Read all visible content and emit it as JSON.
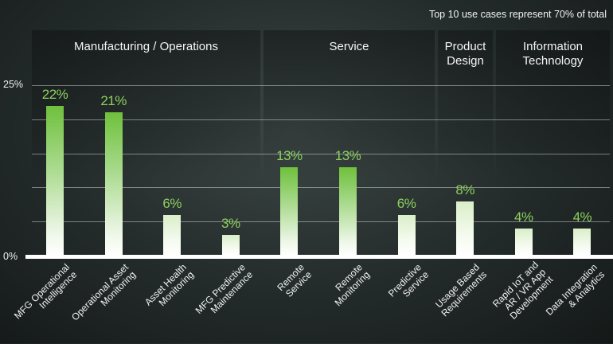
{
  "note": "Top 10 use cases represent 70% of total",
  "groups": [
    {
      "label": "Manufacturing / Operations"
    },
    {
      "label": "Service"
    },
    {
      "label": "Product Design"
    },
    {
      "label": "Information Technology"
    }
  ],
  "chart_data": {
    "type": "bar",
    "title": "Top 10 use cases represent 70% of total",
    "ylabel": "",
    "xlabel": "",
    "ylim": [
      0,
      25
    ],
    "yticks": [
      "0%",
      "25%"
    ],
    "grid": true,
    "categories": [
      "MFG Operational Intelligence",
      "Operational Asset Monitoring",
      "Asset Health Monitoring",
      "MFG Predictive Maintenance",
      "Remote Service",
      "Remote Monitoring",
      "Predictive Service",
      "Usage Based Requirements",
      "Rapid IoT and AR / VR App Development",
      "Data Integration & Analytics"
    ],
    "category_lines": [
      [
        "MFG Operational",
        "Intelligence"
      ],
      [
        "Operational Asset",
        "Monitoring"
      ],
      [
        "Asset Health",
        "Monitoring"
      ],
      [
        "MFG Predictive",
        "Maintenance"
      ],
      [
        "Remote",
        "Service"
      ],
      [
        "Remote",
        "Monitoring"
      ],
      [
        "Predictive",
        "Service"
      ],
      [
        "Usage Based",
        "Requirements"
      ],
      [
        "Rapid IoT and",
        "AR / VR App",
        "Development"
      ],
      [
        "Data Integration",
        "& Analytics"
      ]
    ],
    "values": [
      22,
      21,
      6,
      3,
      13,
      13,
      6,
      8,
      4,
      4
    ],
    "value_labels": [
      "22%",
      "21%",
      "6%",
      "3%",
      "13%",
      "13%",
      "6%",
      "8%",
      "4%",
      "4%"
    ],
    "category_groups": [
      "Manufacturing / Operations",
      "Manufacturing / Operations",
      "Manufacturing / Operations",
      "Manufacturing / Operations",
      "Service",
      "Service",
      "Service",
      "Product Design",
      "Information Technology",
      "Information Technology"
    ],
    "colors": {
      "strong": "#6fc03c",
      "label": "#8ed060"
    }
  }
}
